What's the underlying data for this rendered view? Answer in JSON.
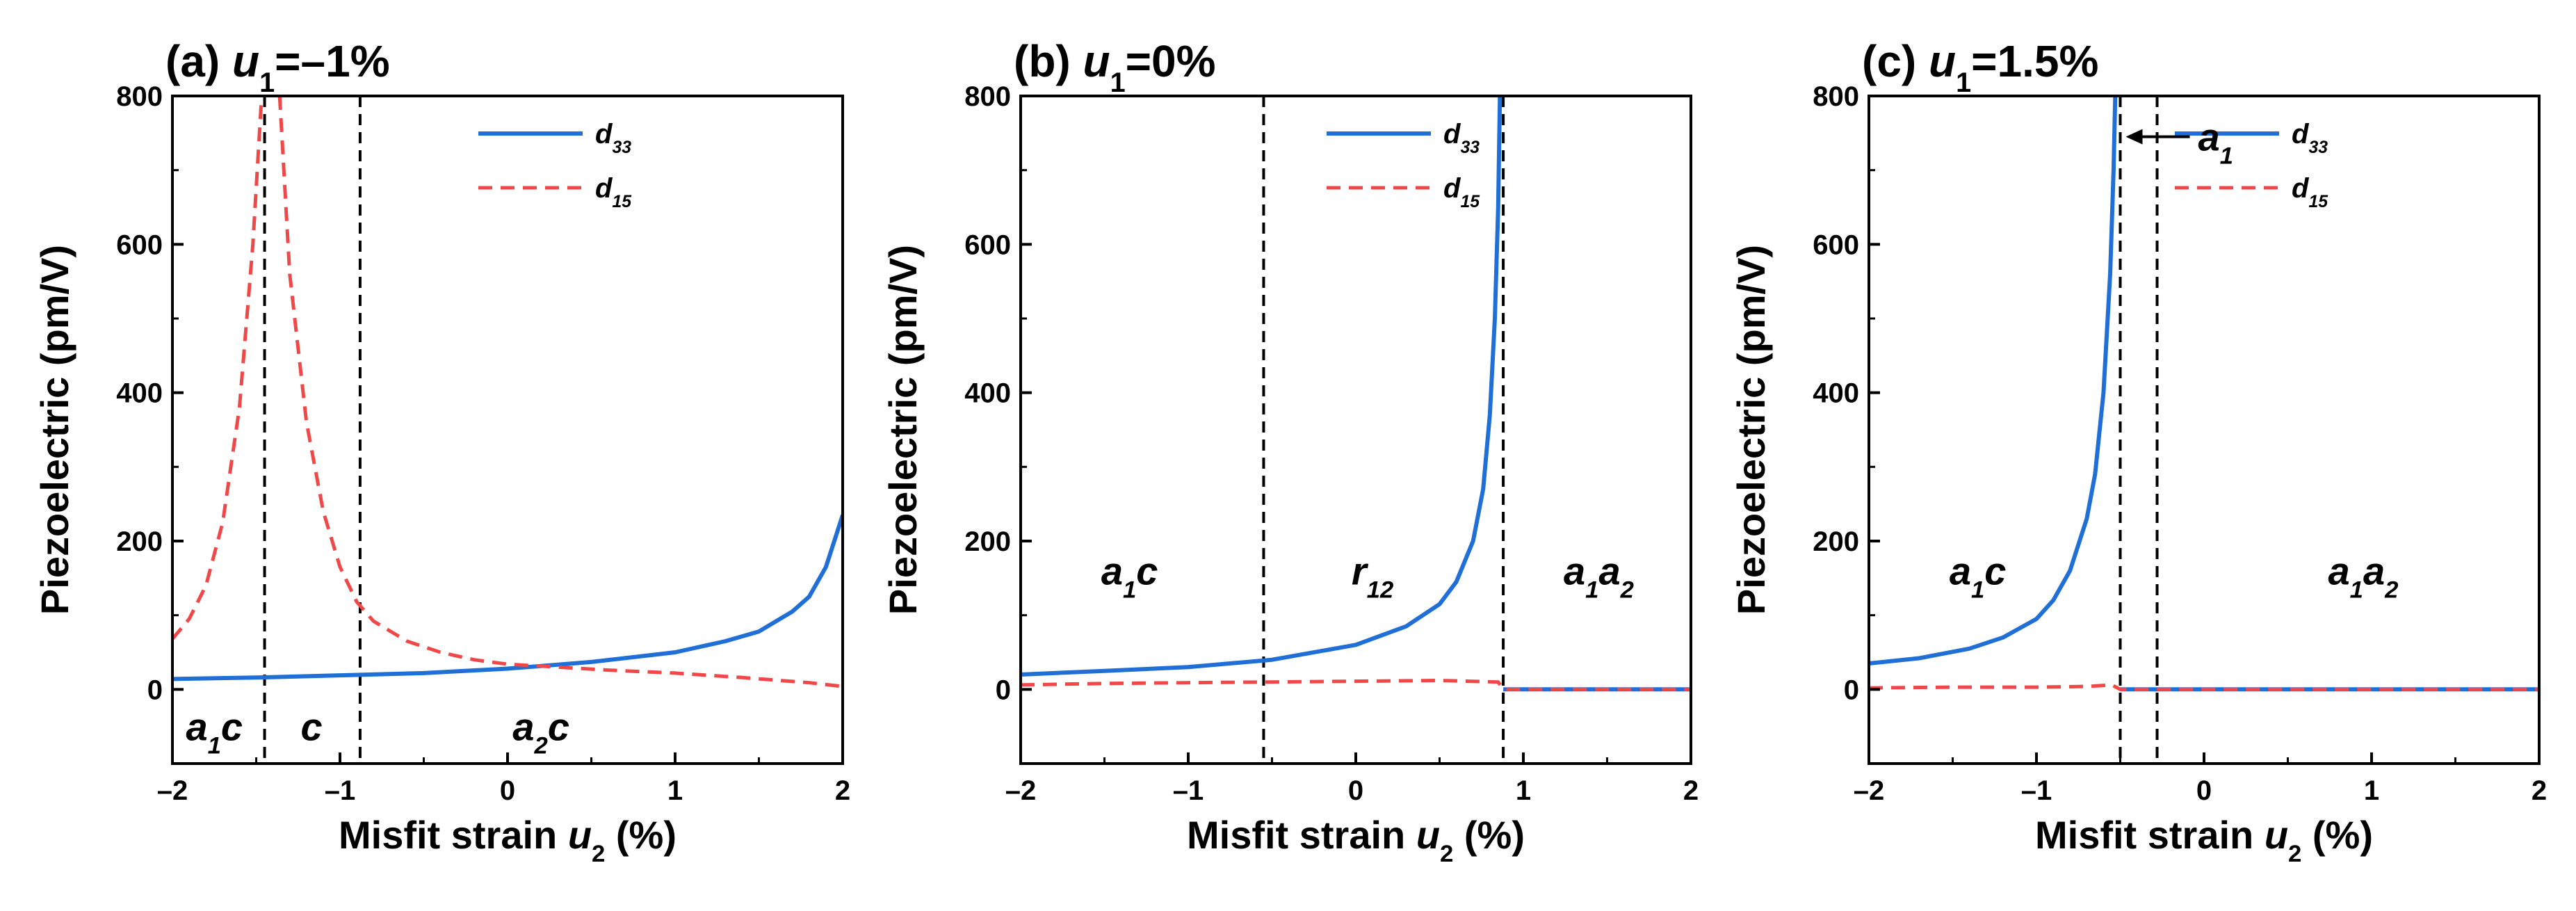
{
  "colors": {
    "d33": "#1f6fd6",
    "d15": "#f04848",
    "axis": "#000000",
    "boundary": "#000000"
  },
  "chart_data": [
    {
      "type": "line",
      "title": {
        "prefix": "(a) ",
        "var": "u",
        "sub": "1",
        "suffix": "=–1%"
      },
      "ylabel": "Piezoelectric (pm/V)",
      "xlabel": {
        "text": "Misfit strain ",
        "var": "u",
        "sub": "2",
        "suffix": " (%)"
      },
      "xlim": [
        -2,
        2
      ],
      "ylim": [
        -100,
        800
      ],
      "xticks": [
        -2,
        -1,
        0,
        1,
        2
      ],
      "xtick_labels": [
        "–2",
        "–1",
        "0",
        "1",
        "2"
      ],
      "yticks": [
        0,
        200,
        400,
        600,
        800
      ],
      "ytick_labels": [
        "0",
        "200",
        "400",
        "600",
        "800"
      ],
      "legend": [
        {
          "key": "d33",
          "var": "d",
          "sub": "33"
        },
        {
          "key": "d15",
          "var": "d",
          "sub": "15"
        }
      ],
      "boundaries": [
        -1.45,
        -0.88
      ],
      "phases": [
        {
          "x": -1.75,
          "y": -50,
          "parts": [
            [
              "a",
              ""
            ],
            [
              "1",
              "sub"
            ],
            [
              "c",
              ""
            ]
          ]
        },
        {
          "x": -1.17,
          "y": -50,
          "parts": [
            [
              "c",
              ""
            ]
          ]
        },
        {
          "x": 0.2,
          "y": -50,
          "parts": [
            [
              "a",
              ""
            ],
            [
              "2",
              "sub"
            ],
            [
              "c",
              ""
            ]
          ]
        }
      ],
      "series": [
        {
          "name": "d33",
          "style": "solid",
          "segments": [
            [
              [
                -2,
                14
              ],
              [
                -1.5,
                16
              ],
              [
                -1,
                19
              ],
              [
                -0.5,
                22
              ],
              [
                0,
                28
              ],
              [
                0.5,
                37
              ],
              [
                1,
                50
              ],
              [
                1.3,
                65
              ],
              [
                1.5,
                78
              ],
              [
                1.7,
                105
              ],
              [
                1.8,
                125
              ],
              [
                1.9,
                165
              ],
              [
                2,
                235
              ]
            ]
          ]
        },
        {
          "name": "d15",
          "style": "dashed",
          "segments": [
            [
              [
                -2,
                68
              ],
              [
                -1.9,
                95
              ],
              [
                -1.8,
                140
              ],
              [
                -1.7,
                225
              ],
              [
                -1.6,
                380
              ],
              [
                -1.52,
                600
              ],
              [
                -1.47,
                790
              ]
            ],
            [
              [
                -1.36,
                800
              ],
              [
                -1.3,
                560
              ],
              [
                -1.2,
                360
              ],
              [
                -1.1,
                240
              ],
              [
                -1,
                165
              ],
              [
                -0.9,
                118
              ],
              [
                -0.8,
                92
              ],
              [
                -0.6,
                65
              ],
              [
                -0.4,
                50
              ],
              [
                -0.2,
                40
              ],
              [
                0,
                34
              ],
              [
                0.3,
                30
              ],
              [
                0.6,
                26
              ],
              [
                1,
                22
              ],
              [
                1.4,
                16
              ],
              [
                1.8,
                9
              ],
              [
                2,
                4
              ]
            ]
          ]
        }
      ]
    },
    {
      "type": "line",
      "title": {
        "prefix": "(b) ",
        "var": "u",
        "sub": "1",
        "suffix": "=0%"
      },
      "ylabel": "Piezoelectric (pm/V)",
      "xlabel": {
        "text": "Misfit strain ",
        "var": "u",
        "sub": "2",
        "suffix": " (%)"
      },
      "xlim": [
        -2,
        2
      ],
      "ylim": [
        -100,
        800
      ],
      "xticks": [
        -2,
        -1,
        0,
        1,
        2
      ],
      "xtick_labels": [
        "–2",
        "–1",
        "0",
        "1",
        "2"
      ],
      "yticks": [
        0,
        200,
        400,
        600,
        800
      ],
      "ytick_labels": [
        "0",
        "200",
        "400",
        "600",
        "800"
      ],
      "legend": [
        {
          "key": "d33",
          "var": "d",
          "sub": "33"
        },
        {
          "key": "d15",
          "var": "d",
          "sub": "15"
        }
      ],
      "boundaries": [
        -0.55,
        0.88
      ],
      "phases": [
        {
          "x": -1.35,
          "y": 160,
          "parts": [
            [
              "a",
              ""
            ],
            [
              "1",
              "sub"
            ],
            [
              "c",
              ""
            ]
          ]
        },
        {
          "x": 0.1,
          "y": 160,
          "parts": [
            [
              "r",
              ""
            ],
            [
              "12",
              "sub"
            ]
          ]
        },
        {
          "x": 1.45,
          "y": 160,
          "parts": [
            [
              "a",
              ""
            ],
            [
              "1",
              "sub"
            ],
            [
              "a",
              ""
            ],
            [
              "2",
              "sub"
            ]
          ]
        }
      ],
      "series": [
        {
          "name": "d33",
          "style": "solid",
          "segments": [
            [
              [
                -2,
                20
              ],
              [
                -1.5,
                25
              ],
              [
                -1,
                30
              ],
              [
                -0.5,
                40
              ],
              [
                0,
                60
              ],
              [
                0.3,
                85
              ],
              [
                0.5,
                115
              ],
              [
                0.6,
                145
              ],
              [
                0.7,
                200
              ],
              [
                0.76,
                270
              ],
              [
                0.8,
                370
              ],
              [
                0.83,
                500
              ],
              [
                0.85,
                650
              ],
              [
                0.86,
                800
              ]
            ],
            [
              [
                0.88,
                0
              ],
              [
                2,
                0
              ]
            ]
          ]
        },
        {
          "name": "d15",
          "style": "dashed",
          "segments": [
            [
              [
                -2,
                6
              ],
              [
                -1.5,
                8
              ],
              [
                -1,
                9
              ],
              [
                -0.5,
                10
              ],
              [
                0,
                11
              ],
              [
                0.5,
                12
              ],
              [
                0.85,
                10
              ],
              [
                0.88,
                0
              ],
              [
                2,
                0
              ]
            ]
          ]
        }
      ]
    },
    {
      "type": "line",
      "title": {
        "prefix": "(c) ",
        "var": "u",
        "sub": "1",
        "suffix": "=1.5%"
      },
      "ylabel": "Piezoelectric (pm/V)",
      "xlabel": {
        "text": "Misfit strain ",
        "var": "u",
        "sub": "2",
        "suffix": " (%)"
      },
      "xlim": [
        -2,
        2
      ],
      "ylim": [
        -100,
        800
      ],
      "xticks": [
        -2,
        -1,
        0,
        1,
        2
      ],
      "xtick_labels": [
        "–2",
        "–1",
        "0",
        "1",
        "2"
      ],
      "yticks": [
        0,
        200,
        400,
        600,
        800
      ],
      "ytick_labels": [
        "0",
        "200",
        "400",
        "600",
        "800"
      ],
      "legend": [
        {
          "key": "d33",
          "var": "d",
          "sub": "33"
        },
        {
          "key": "d15",
          "var": "d",
          "sub": "15"
        }
      ],
      "boundaries": [
        -0.5,
        -0.28
      ],
      "annotation": {
        "x": -0.5,
        "y": 745,
        "parts": [
          [
            "a",
            ""
          ],
          [
            "1",
            "sub"
          ]
        ]
      },
      "phases": [
        {
          "x": -1.35,
          "y": 160,
          "parts": [
            [
              "a",
              ""
            ],
            [
              "1",
              "sub"
            ],
            [
              "c",
              ""
            ]
          ]
        },
        {
          "x": 0.95,
          "y": 160,
          "parts": [
            [
              "a",
              ""
            ],
            [
              "1",
              "sub"
            ],
            [
              "a",
              ""
            ],
            [
              "2",
              "sub"
            ]
          ]
        }
      ],
      "series": [
        {
          "name": "d33",
          "style": "solid",
          "segments": [
            [
              [
                -2,
                35
              ],
              [
                -1.7,
                42
              ],
              [
                -1.4,
                55
              ],
              [
                -1.2,
                70
              ],
              [
                -1,
                95
              ],
              [
                -0.9,
                120
              ],
              [
                -0.8,
                160
              ],
              [
                -0.7,
                230
              ],
              [
                -0.65,
                290
              ],
              [
                -0.6,
                400
              ],
              [
                -0.56,
                560
              ],
              [
                -0.54,
                700
              ],
              [
                -0.53,
                800
              ]
            ],
            [
              [
                -0.5,
                0
              ],
              [
                2,
                0
              ]
            ]
          ]
        },
        {
          "name": "d15",
          "style": "dashed",
          "segments": [
            [
              [
                -2,
                2
              ],
              [
                -1.5,
                3
              ],
              [
                -1,
                3
              ],
              [
                -0.7,
                4
              ],
              [
                -0.55,
                6
              ],
              [
                -0.5,
                0
              ],
              [
                2,
                0
              ]
            ]
          ]
        }
      ]
    }
  ]
}
